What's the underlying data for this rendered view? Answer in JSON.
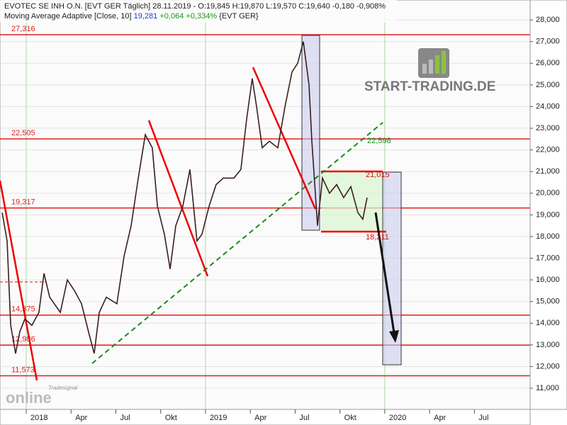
{
  "chart_data": {
    "type": "line",
    "header": {
      "line1": "EVOTEC SE  INH O.N. [EVT GER  Täglich] 28.11.2019 - O:19,845 H:19,870 L:19,570 C:19,640 -0,180 -0,908%",
      "line2_name": "Moving Average Adaptive [Close, 10]",
      "line2_value": "19,281",
      "line2_change": "+0,064 +0,334%",
      "line2_symbol": "{EVT GER}"
    },
    "currency": "€",
    "logo": "START-TRADING.DE",
    "watermark_top": "Tradesignal",
    "watermark_main": "online",
    "series": [
      {
        "name": "EVOTEC SE INH O.N.",
        "color": "#3a1f1f",
        "x": [
          -1.61,
          -1.28,
          -1.04,
          -0.71,
          -0.43,
          -0.09,
          0.38,
          0.85,
          1.19,
          1.57,
          2.28,
          2.75,
          3.23,
          3.7,
          4.17,
          4.55,
          4.89,
          5.36,
          6.07,
          6.55,
          7.02,
          7.5,
          7.97,
          8.44,
          8.78,
          9.25,
          9.63,
          10.01,
          10.48,
          10.96,
          11.43,
          11.76,
          12.24,
          12.71,
          13.19,
          13.9,
          14.37,
          14.75,
          15.13,
          15.42,
          15.8,
          16.27,
          16.84,
          17.32,
          17.79,
          18.17,
          18.55,
          18.93,
          19.12,
          19.5,
          19.83,
          20.3,
          20.78,
          21.25,
          21.73,
          22.2,
          22.53,
          22.82
        ],
        "values": [
          19.1,
          17.8,
          13.9,
          12.6,
          13.6,
          14.2,
          13.9,
          14.5,
          16.3,
          15.2,
          14.5,
          16.0,
          15.5,
          14.9,
          13.6,
          12.6,
          14.5,
          15.2,
          14.9,
          17.1,
          18.5,
          20.7,
          22.7,
          22.1,
          19.4,
          18.1,
          16.5,
          18.5,
          19.4,
          21.1,
          17.8,
          18.1,
          19.4,
          20.4,
          20.7,
          20.7,
          21.1,
          23.4,
          25.3,
          24.0,
          22.1,
          22.4,
          22.1,
          24.0,
          25.6,
          26.0,
          27.0,
          25.0,
          22.4,
          18.5,
          20.7,
          20.0,
          20.4,
          19.8,
          20.3,
          19.1,
          18.8,
          19.8
        ]
      }
    ],
    "levels": [
      {
        "value": 27.316,
        "label": "27,316"
      },
      {
        "value": 22.505,
        "label": "22,505"
      },
      {
        "value": 19.317,
        "label": "19,317"
      },
      {
        "value": 14.375,
        "label": "14,375"
      },
      {
        "value": 12.986,
        "label": "12,986"
      },
      {
        "value": 11.573,
        "label": "11,573"
      }
    ],
    "annotations": {
      "trend_target": "22,598",
      "range_top": "21,015",
      "range_bottom": "18,211"
    },
    "xlim": [
      -1.755,
      33.73
    ],
    "ylim": [
      10.02,
      28.92
    ],
    "xticks": [
      {
        "value": 0,
        "label": "2018"
      },
      {
        "value": 3,
        "label": "Apr"
      },
      {
        "value": 6,
        "label": "Jul"
      },
      {
        "value": 9,
        "label": "Okt"
      },
      {
        "value": 12,
        "label": "2019"
      },
      {
        "value": 15,
        "label": "Apr"
      },
      {
        "value": 18,
        "label": "Jul"
      },
      {
        "value": 21,
        "label": "Okt"
      },
      {
        "value": 24,
        "label": "2020"
      },
      {
        "value": 27,
        "label": "Apr"
      },
      {
        "value": 30,
        "label": "Jul"
      }
    ],
    "yticks": [
      {
        "value": 11,
        "label": "11,000"
      },
      {
        "value": 12,
        "label": "12,000"
      },
      {
        "value": 13,
        "label": "13,000"
      },
      {
        "value": 14,
        "label": "14,000"
      },
      {
        "value": 15,
        "label": "15,000"
      },
      {
        "value": 16,
        "label": "16,000"
      },
      {
        "value": 17,
        "label": "17,000"
      },
      {
        "value": 18,
        "label": "18,000"
      },
      {
        "value": 19,
        "label": "19,000"
      },
      {
        "value": 20,
        "label": "20,000"
      },
      {
        "value": 21,
        "label": "21,000"
      },
      {
        "value": 22,
        "label": "22,000"
      },
      {
        "value": 23,
        "label": "23,000"
      },
      {
        "value": 24,
        "label": "24,000"
      },
      {
        "value": 25,
        "label": "25,000"
      },
      {
        "value": 26,
        "label": "26,000"
      },
      {
        "value": 27,
        "label": "27,000"
      },
      {
        "value": 28,
        "label": "28,000"
      }
    ],
    "grid": true,
    "level_color": "#e02020"
  }
}
